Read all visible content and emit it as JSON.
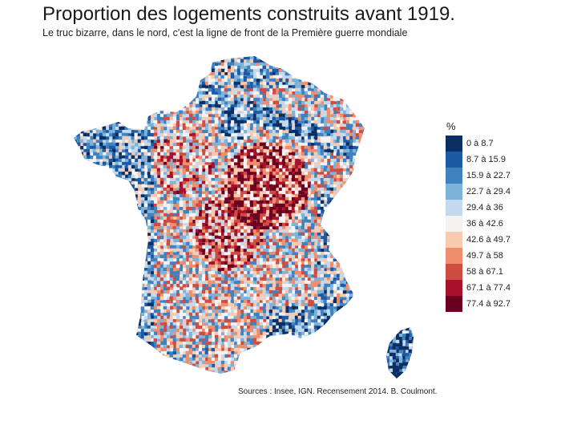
{
  "title": "Proportion des logements construits avant 1919.",
  "subtitle": "Le truc bizarre, dans le nord, c'est la ligne de front de la Première guerre mondiale",
  "legend": {
    "title": "%",
    "items": [
      {
        "label": "0  à  8.7",
        "color": "#0b2f62"
      },
      {
        "label": "8.7  à  15.9",
        "color": "#1d5aa5"
      },
      {
        "label": "15.9  à  22.7",
        "color": "#3f82bf"
      },
      {
        "label": "22.7  à  29.4",
        "color": "#7db3d8"
      },
      {
        "label": "29.4  à  36",
        "color": "#c3daee"
      },
      {
        "label": "36  à  42.6",
        "color": "#f4f3f2"
      },
      {
        "label": "42.6  à  49.7",
        "color": "#f9c9b0"
      },
      {
        "label": "49.7  à  58",
        "color": "#ee8e6d"
      },
      {
        "label": "58  à  67.1",
        "color": "#cf4c43"
      },
      {
        "label": "67.1  à  77.4",
        "color": "#a8102b"
      },
      {
        "label": "77.4  à  92.7",
        "color": "#6b0020"
      }
    ]
  },
  "source": "Sources : Insee, IGN. Recensement 2014. B. Coulmont."
}
